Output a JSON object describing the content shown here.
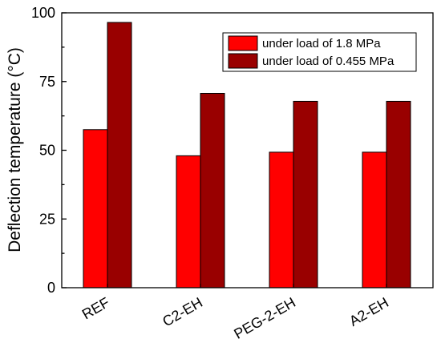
{
  "chart_data": {
    "type": "bar",
    "ylabel": "Deflection temperature (°C)",
    "xlabel": "",
    "ylim": [
      0,
      100
    ],
    "yticks": [
      0,
      25,
      50,
      75,
      100
    ],
    "grid": false,
    "legend_position": "top-right",
    "categories": [
      "REF",
      "C2-EH",
      "PEG-2-EH",
      "A2-EH"
    ],
    "series": [
      {
        "name": "under load of 1.8 MPa",
        "color": "#ff0000",
        "values": [
          57.5,
          48,
          49.3,
          49.3
        ]
      },
      {
        "name": "under load of 0.455 MPa",
        "color": "#990000",
        "values": [
          96.5,
          70.7,
          67.8,
          67.8
        ]
      }
    ]
  }
}
